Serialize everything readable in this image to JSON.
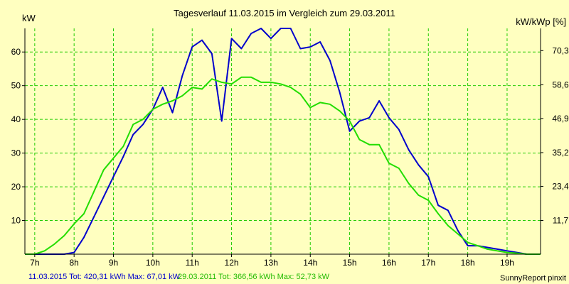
{
  "chart_data": {
    "type": "line",
    "title": "Tagesverlauf 11.03.2015 im Vergleich zum 29.03.2011",
    "ylabel_left": "kW",
    "ylabel_right": "kW/kWp [%]",
    "xlim": [
      6.75,
      19.85
    ],
    "ylim": [
      0,
      67
    ],
    "x_ticks": [
      {
        "value": 7,
        "label": "7h"
      },
      {
        "value": 8,
        "label": "8h"
      },
      {
        "value": 9,
        "label": "9h"
      },
      {
        "value": 10,
        "label": "10h"
      },
      {
        "value": 11,
        "label": "11h"
      },
      {
        "value": 12,
        "label": "12h"
      },
      {
        "value": 13,
        "label": "13h"
      },
      {
        "value": 14,
        "label": "14h"
      },
      {
        "value": 15,
        "label": "15h"
      },
      {
        "value": 16,
        "label": "16h"
      },
      {
        "value": 17,
        "label": "17h"
      },
      {
        "value": 18,
        "label": "18h"
      },
      {
        "value": 19,
        "label": "19h"
      }
    ],
    "y_ticks_left": [
      {
        "value": 10,
        "label": "10"
      },
      {
        "value": 20,
        "label": "20"
      },
      {
        "value": 30,
        "label": "30"
      },
      {
        "value": 40,
        "label": "40"
      },
      {
        "value": 50,
        "label": "50"
      },
      {
        "value": 60,
        "label": "60"
      }
    ],
    "y_ticks_right": [
      {
        "value": 8.2,
        "label": "11,7"
      },
      {
        "value": 16.5,
        "label": "23,4"
      },
      {
        "value": 24.7,
        "label": "35,2"
      },
      {
        "value": 33.0,
        "label": "46,9"
      },
      {
        "value": 41.2,
        "label": "58,6"
      },
      {
        "value": 49.5,
        "label": "70,3"
      }
    ],
    "grid": true,
    "series": [
      {
        "name": "11.03.2015",
        "color": "#0000cc",
        "points": [
          [
            6.75,
            0
          ],
          [
            7.75,
            0
          ],
          [
            8.0,
            0.5
          ],
          [
            8.25,
            5
          ],
          [
            8.5,
            11
          ],
          [
            8.75,
            17
          ],
          [
            9.0,
            23
          ],
          [
            9.25,
            29
          ],
          [
            9.5,
            35.5
          ],
          [
            9.75,
            38.5
          ],
          [
            10.0,
            43
          ],
          [
            10.25,
            49.5
          ],
          [
            10.5,
            42
          ],
          [
            10.75,
            53
          ],
          [
            11.0,
            61.5
          ],
          [
            11.25,
            63.5
          ],
          [
            11.5,
            59.5
          ],
          [
            11.75,
            39.5
          ],
          [
            12.0,
            64
          ],
          [
            12.25,
            61
          ],
          [
            12.5,
            65.5
          ],
          [
            12.75,
            67
          ],
          [
            13.0,
            64
          ],
          [
            13.25,
            67
          ],
          [
            13.5,
            67
          ],
          [
            13.75,
            61
          ],
          [
            14.0,
            61.5
          ],
          [
            14.25,
            63
          ],
          [
            14.5,
            57.5
          ],
          [
            14.75,
            48
          ],
          [
            15.0,
            36.5
          ],
          [
            15.25,
            39.5
          ],
          [
            15.5,
            40.5
          ],
          [
            15.75,
            45.5
          ],
          [
            16.0,
            40.5
          ],
          [
            16.25,
            37
          ],
          [
            16.5,
            31
          ],
          [
            16.75,
            26.5
          ],
          [
            17.0,
            23
          ],
          [
            17.25,
            14.5
          ],
          [
            17.5,
            13
          ],
          [
            17.75,
            7
          ],
          [
            18.0,
            2.5
          ],
          [
            18.25,
            2.5
          ],
          [
            18.5,
            2
          ],
          [
            18.75,
            1.5
          ],
          [
            19.0,
            1
          ],
          [
            19.25,
            0.5
          ],
          [
            19.5,
            0
          ],
          [
            19.85,
            0
          ]
        ]
      },
      {
        "name": "29.03.2011",
        "color": "#22dd00",
        "points": [
          [
            6.75,
            0
          ],
          [
            7.0,
            0
          ],
          [
            7.25,
            1
          ],
          [
            7.5,
            3
          ],
          [
            7.75,
            5.5
          ],
          [
            8.0,
            9
          ],
          [
            8.25,
            12
          ],
          [
            8.5,
            18.5
          ],
          [
            8.75,
            25
          ],
          [
            9.0,
            28.5
          ],
          [
            9.25,
            32
          ],
          [
            9.5,
            38.5
          ],
          [
            9.75,
            40
          ],
          [
            10.0,
            43
          ],
          [
            10.25,
            44.5
          ],
          [
            10.5,
            45.5
          ],
          [
            10.75,
            47
          ],
          [
            11.0,
            49.5
          ],
          [
            11.25,
            49
          ],
          [
            11.5,
            52
          ],
          [
            11.75,
            51
          ],
          [
            12.0,
            50.5
          ],
          [
            12.25,
            52.5
          ],
          [
            12.5,
            52.5
          ],
          [
            12.75,
            51
          ],
          [
            13.0,
            51
          ],
          [
            13.25,
            50.5
          ],
          [
            13.5,
            49.5
          ],
          [
            13.75,
            47.5
          ],
          [
            14.0,
            43.5
          ],
          [
            14.25,
            45
          ],
          [
            14.5,
            44.5
          ],
          [
            14.75,
            42.5
          ],
          [
            15.0,
            39.5
          ],
          [
            15.25,
            34
          ],
          [
            15.5,
            32.5
          ],
          [
            15.75,
            32.5
          ],
          [
            16.0,
            27
          ],
          [
            16.25,
            25.5
          ],
          [
            16.5,
            21
          ],
          [
            16.75,
            17.5
          ],
          [
            17.0,
            16
          ],
          [
            17.25,
            12
          ],
          [
            17.5,
            8.5
          ],
          [
            17.75,
            6
          ],
          [
            18.0,
            3.5
          ],
          [
            18.25,
            2.5
          ],
          [
            18.5,
            1.5
          ],
          [
            18.75,
            1
          ],
          [
            19.0,
            0.5
          ],
          [
            19.25,
            0.3
          ],
          [
            19.5,
            0
          ],
          [
            19.85,
            0
          ]
        ]
      }
    ]
  },
  "footer": {
    "summary_blue": "11.03.2015 Tot: 420,31 kWh Max: 67,01 kW",
    "summary_green": "29.03.2011 Tot: 366,56 kWh Max: 52,73 kW",
    "credit": "SunnyReport pinxit"
  },
  "colors": {
    "background": "#ffffc0",
    "grid": "#22cc00",
    "axis": "#000000"
  }
}
